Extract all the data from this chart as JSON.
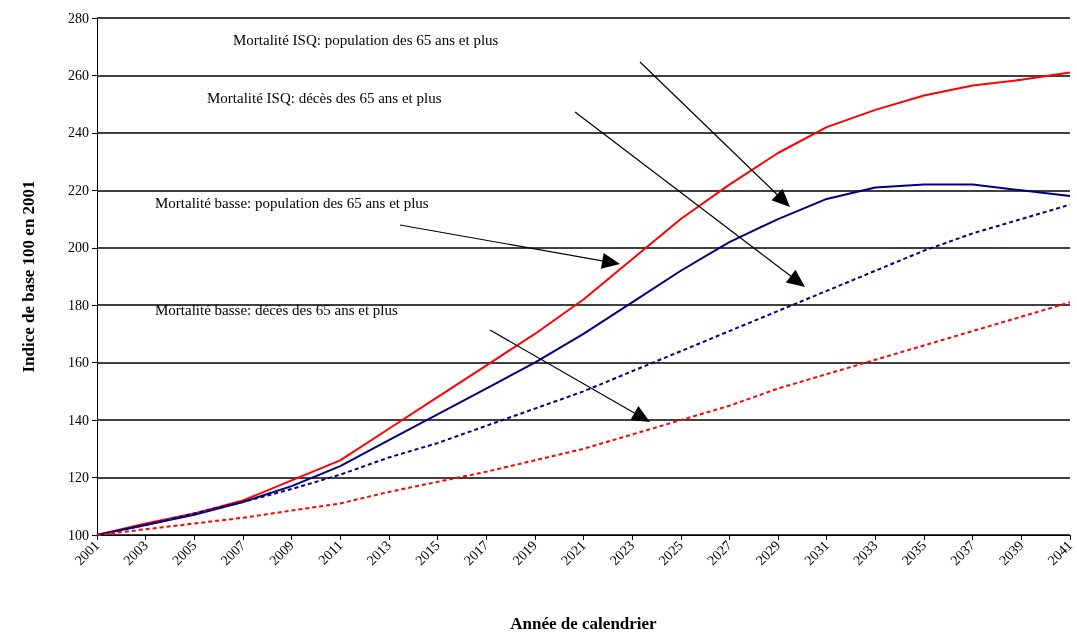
{
  "chart_data": {
    "type": "line",
    "xlabel": "Année de calendrier",
    "ylabel": "Indice de base 100 en 2001",
    "x": [
      2001,
      2003,
      2005,
      2007,
      2009,
      2011,
      2013,
      2015,
      2017,
      2019,
      2021,
      2023,
      2025,
      2027,
      2029,
      2031,
      2033,
      2035,
      2037,
      2039,
      2041
    ],
    "series": [
      {
        "color": "#ff0000",
        "line_style": "solid",
        "values": [
          100,
          104,
          107.5,
          112,
          119,
          126,
          137,
          148,
          159,
          170,
          182,
          196,
          210,
          222,
          233,
          242,
          248,
          253,
          256.5,
          258.5,
          261
        ]
      },
      {
        "color": "#000080",
        "line_style": "solid",
        "values": [
          100,
          103.5,
          107,
          111.5,
          117,
          124,
          133,
          142,
          151,
          160,
          170,
          181,
          192,
          202,
          210,
          217,
          221,
          222,
          222,
          220,
          218
        ]
      },
      {
        "color": "#000080",
        "line_style": "dashed",
        "values": [
          100,
          103.5,
          107.5,
          111.5,
          116,
          121,
          127,
          132,
          138,
          144,
          150,
          157,
          164,
          171,
          178,
          185,
          192,
          199,
          205,
          210,
          215
        ]
      },
      {
        "color": "#ff0000",
        "line_style": "dashed",
        "values": [
          100,
          102,
          104,
          106,
          108.5,
          111,
          115,
          118.5,
          122,
          126,
          130,
          135,
          140,
          145,
          151,
          156,
          161,
          166,
          171,
          176,
          181
        ]
      }
    ],
    "xlim": [
      2001,
      2041
    ],
    "xticks": [
      2001,
      2003,
      2005,
      2007,
      2009,
      2011,
      2013,
      2015,
      2017,
      2019,
      2021,
      2023,
      2025,
      2027,
      2029,
      2031,
      2033,
      2035,
      2037,
      2039,
      2041
    ],
    "ylim": [
      100,
      280
    ],
    "yticks": [
      100,
      120,
      140,
      160,
      180,
      200,
      220,
      240,
      260,
      280
    ],
    "grid": "y",
    "marker": "none",
    "annotations": [
      "Mortalité ISQ: population des 65 ans et plus",
      "Mortalité ISQ: décès des 65 ans et plus",
      "Mortalité basse: population des 65 ans et plus",
      "Mortalité basse: décès des 65 ans et plus"
    ]
  }
}
